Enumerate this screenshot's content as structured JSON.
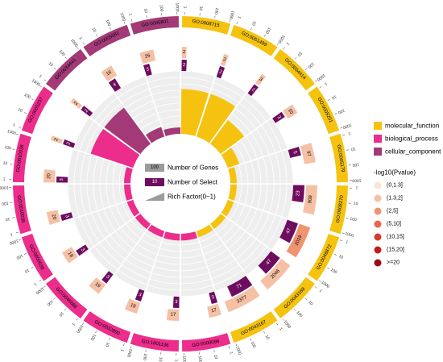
{
  "chart_data": {
    "type": "circos",
    "categories": [
      "molecular_function",
      "biological_process",
      "cellular_component"
    ],
    "category_colors": {
      "molecular_function": "#F5C30F",
      "biological_process": "#EC2D8B",
      "cellular_component": "#A33A77"
    },
    "number_of_select_color": "#6E0C5E",
    "rich_factor_color": "#EEEEEE",
    "outer_ticks": [
      "1",
      "10",
      "100",
      "1000"
    ],
    "center_legend": {
      "genes_sample": "100",
      "genes_label": "Number of Genes",
      "select_sample": "10",
      "select_label": "Number of Select",
      "rich_label": "Rich Factor(0~1)"
    },
    "pvalue_legend": {
      "title": "-log10(Pvalue)",
      "bins": [
        "(0,1.3]",
        "(1.3,2]",
        "(2,5]",
        "(5,10]",
        "(10,15]",
        "(15,20]",
        ">=20"
      ],
      "colors": [
        "#FBE3D6",
        "#F5C0A4",
        "#F0936F",
        "#E8664A",
        "#DA3A2C",
        "#C21C1E",
        "#9E0A14"
      ]
    },
    "terms": [
      {
        "id": "GO:0008715",
        "category": "molecular_function",
        "genes": 2,
        "select": 2,
        "rich": 1.0,
        "pvalue_bin": 1
      },
      {
        "id": "GO:0051499",
        "category": "molecular_function",
        "genes": 2,
        "select": 2,
        "rich": 1.0,
        "pvalue_bin": 1
      },
      {
        "id": "GO:0004414",
        "category": "molecular_function",
        "genes": 3,
        "select": 2,
        "rich": 0.67,
        "pvalue_bin": 1
      },
      {
        "id": "GO:0005201",
        "category": "molecular_function",
        "genes": 10,
        "select": 3,
        "rich": 0.3,
        "pvalue_bin": 1
      },
      {
        "id": "GO:0005179",
        "category": "molecular_function",
        "genes": 97,
        "select": 5,
        "rich": 0.05,
        "pvalue_bin": 1
      },
      {
        "id": "GO:0008270",
        "category": "molecular_function",
        "genes": 909,
        "select": 23,
        "rich": 0.03,
        "pvalue_bin": 1
      },
      {
        "id": "GO:0046872",
        "category": "molecular_function",
        "genes": 2019,
        "select": 47,
        "rich": 0.02,
        "pvalue_bin": 2
      },
      {
        "id": "GO:0043169",
        "category": "molecular_function",
        "genes": 2046,
        "select": 47,
        "rich": 0.02,
        "pvalue_bin": 1
      },
      {
        "id": "GO:0043167",
        "category": "molecular_function",
        "genes": 3377,
        "select": 71,
        "rich": 0.02,
        "pvalue_bin": 1
      },
      {
        "id": "GO:0000096",
        "category": "biological_process",
        "genes": 17,
        "select": 3,
        "rich": 0.18,
        "pvalue_bin": 1
      },
      {
        "id": "GO:1901136",
        "category": "biological_process",
        "genes": 17,
        "select": 3,
        "rich": 0.18,
        "pvalue_bin": 1
      },
      {
        "id": "GO:0032890",
        "category": "biological_process",
        "genes": 19,
        "select": 3,
        "rich": 0.16,
        "pvalue_bin": 1
      },
      {
        "id": "GO:0046688",
        "category": "biological_process",
        "genes": 19,
        "select": 3,
        "rich": 0.16,
        "pvalue_bin": 1
      },
      {
        "id": "GO:0000038",
        "category": "biological_process",
        "genes": 18,
        "select": 3,
        "rich": 0.17,
        "pvalue_bin": 1
      },
      {
        "id": "GO:0010035",
        "category": "biological_process",
        "genes": 20,
        "select": 3,
        "rich": 0.15,
        "pvalue_bin": 1
      },
      {
        "id": "GO:0010038",
        "category": "biological_process",
        "genes": 20,
        "select": 3,
        "rich": 0.15,
        "pvalue_bin": 1
      },
      {
        "id": "GO:0005237",
        "category": "biological_process",
        "genes": 2,
        "select": 2,
        "rich": 1.0,
        "pvalue_bin": 1
      },
      {
        "id": "GO:0034441",
        "category": "cellular_component",
        "genes": 2,
        "select": 2,
        "rich": 1.0,
        "pvalue_bin": 1
      },
      {
        "id": "GO:0005581",
        "category": "cellular_component",
        "genes": 16,
        "select": 4,
        "rich": 0.25,
        "pvalue_bin": 1
      },
      {
        "id": "GO:0005801",
        "category": "cellular_component",
        "genes": 26,
        "select": 3,
        "rich": 0.12,
        "pvalue_bin": 1
      }
    ]
  }
}
